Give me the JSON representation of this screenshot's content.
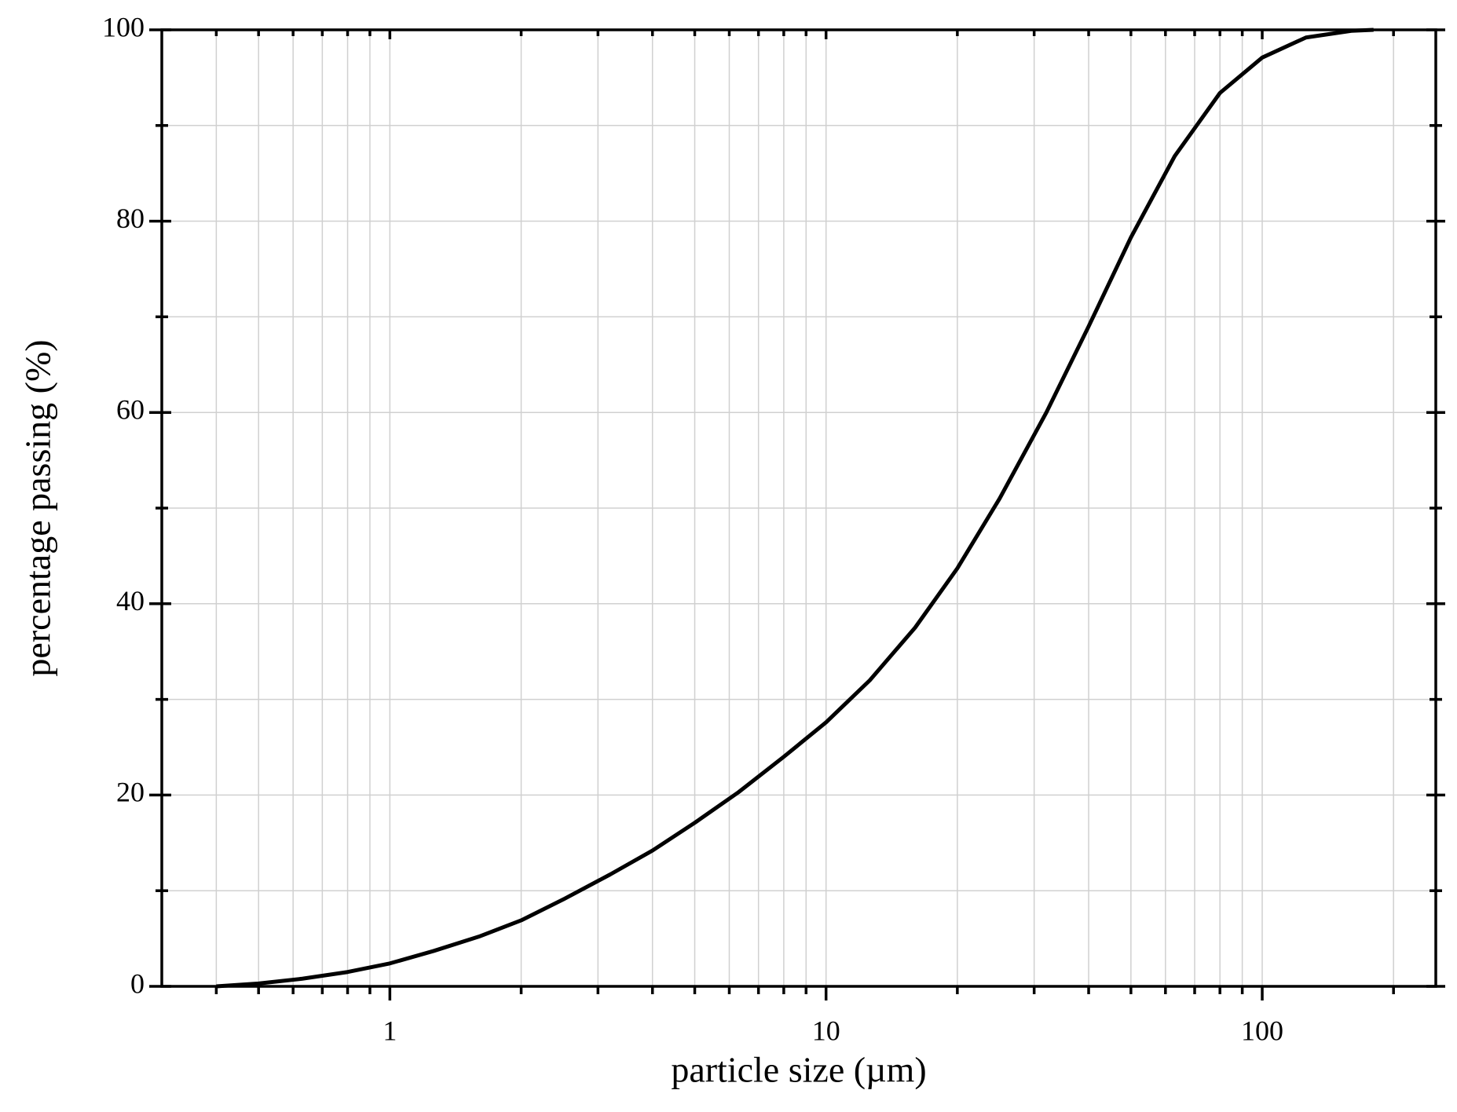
{
  "chart_data": {
    "type": "line",
    "x_label": "particle size (µm)",
    "y_label": "percentage passing (%)",
    "x": [
      0.4,
      0.5,
      0.63,
      0.8,
      1,
      1.26,
      1.6,
      2,
      2.5,
      3.2,
      4,
      5,
      6.3,
      8,
      10,
      12.6,
      16,
      20,
      25,
      32,
      40,
      50,
      63,
      80,
      100,
      126,
      160,
      180
    ],
    "values": [
      0,
      0.3,
      0.8,
      1.5,
      2.4,
      3.7,
      5.2,
      6.9,
      9.1,
      11.7,
      14.2,
      17.1,
      20.3,
      24.0,
      27.6,
      32.0,
      37.5,
      43.7,
      51.0,
      60.0,
      69.0,
      78.3,
      86.8,
      93.4,
      97.1,
      99.2,
      99.9,
      100
    ],
    "color": "#000000",
    "xlim": [
      0.3,
      250
    ],
    "ylim": [
      0,
      100
    ],
    "x_log": true,
    "xticks": [
      1,
      10,
      100
    ],
    "x_minor_ticks": [
      0.4,
      0.5,
      0.6,
      0.7,
      0.8,
      0.9,
      2,
      3,
      4,
      5,
      6,
      7,
      8,
      9,
      20,
      30,
      40,
      50,
      60,
      70,
      80,
      90,
      200
    ],
    "yticks": [
      0,
      20,
      40,
      60,
      80,
      100
    ],
    "y_minor_ticks": [
      10,
      30,
      50,
      70,
      90
    ],
    "grid": true
  }
}
